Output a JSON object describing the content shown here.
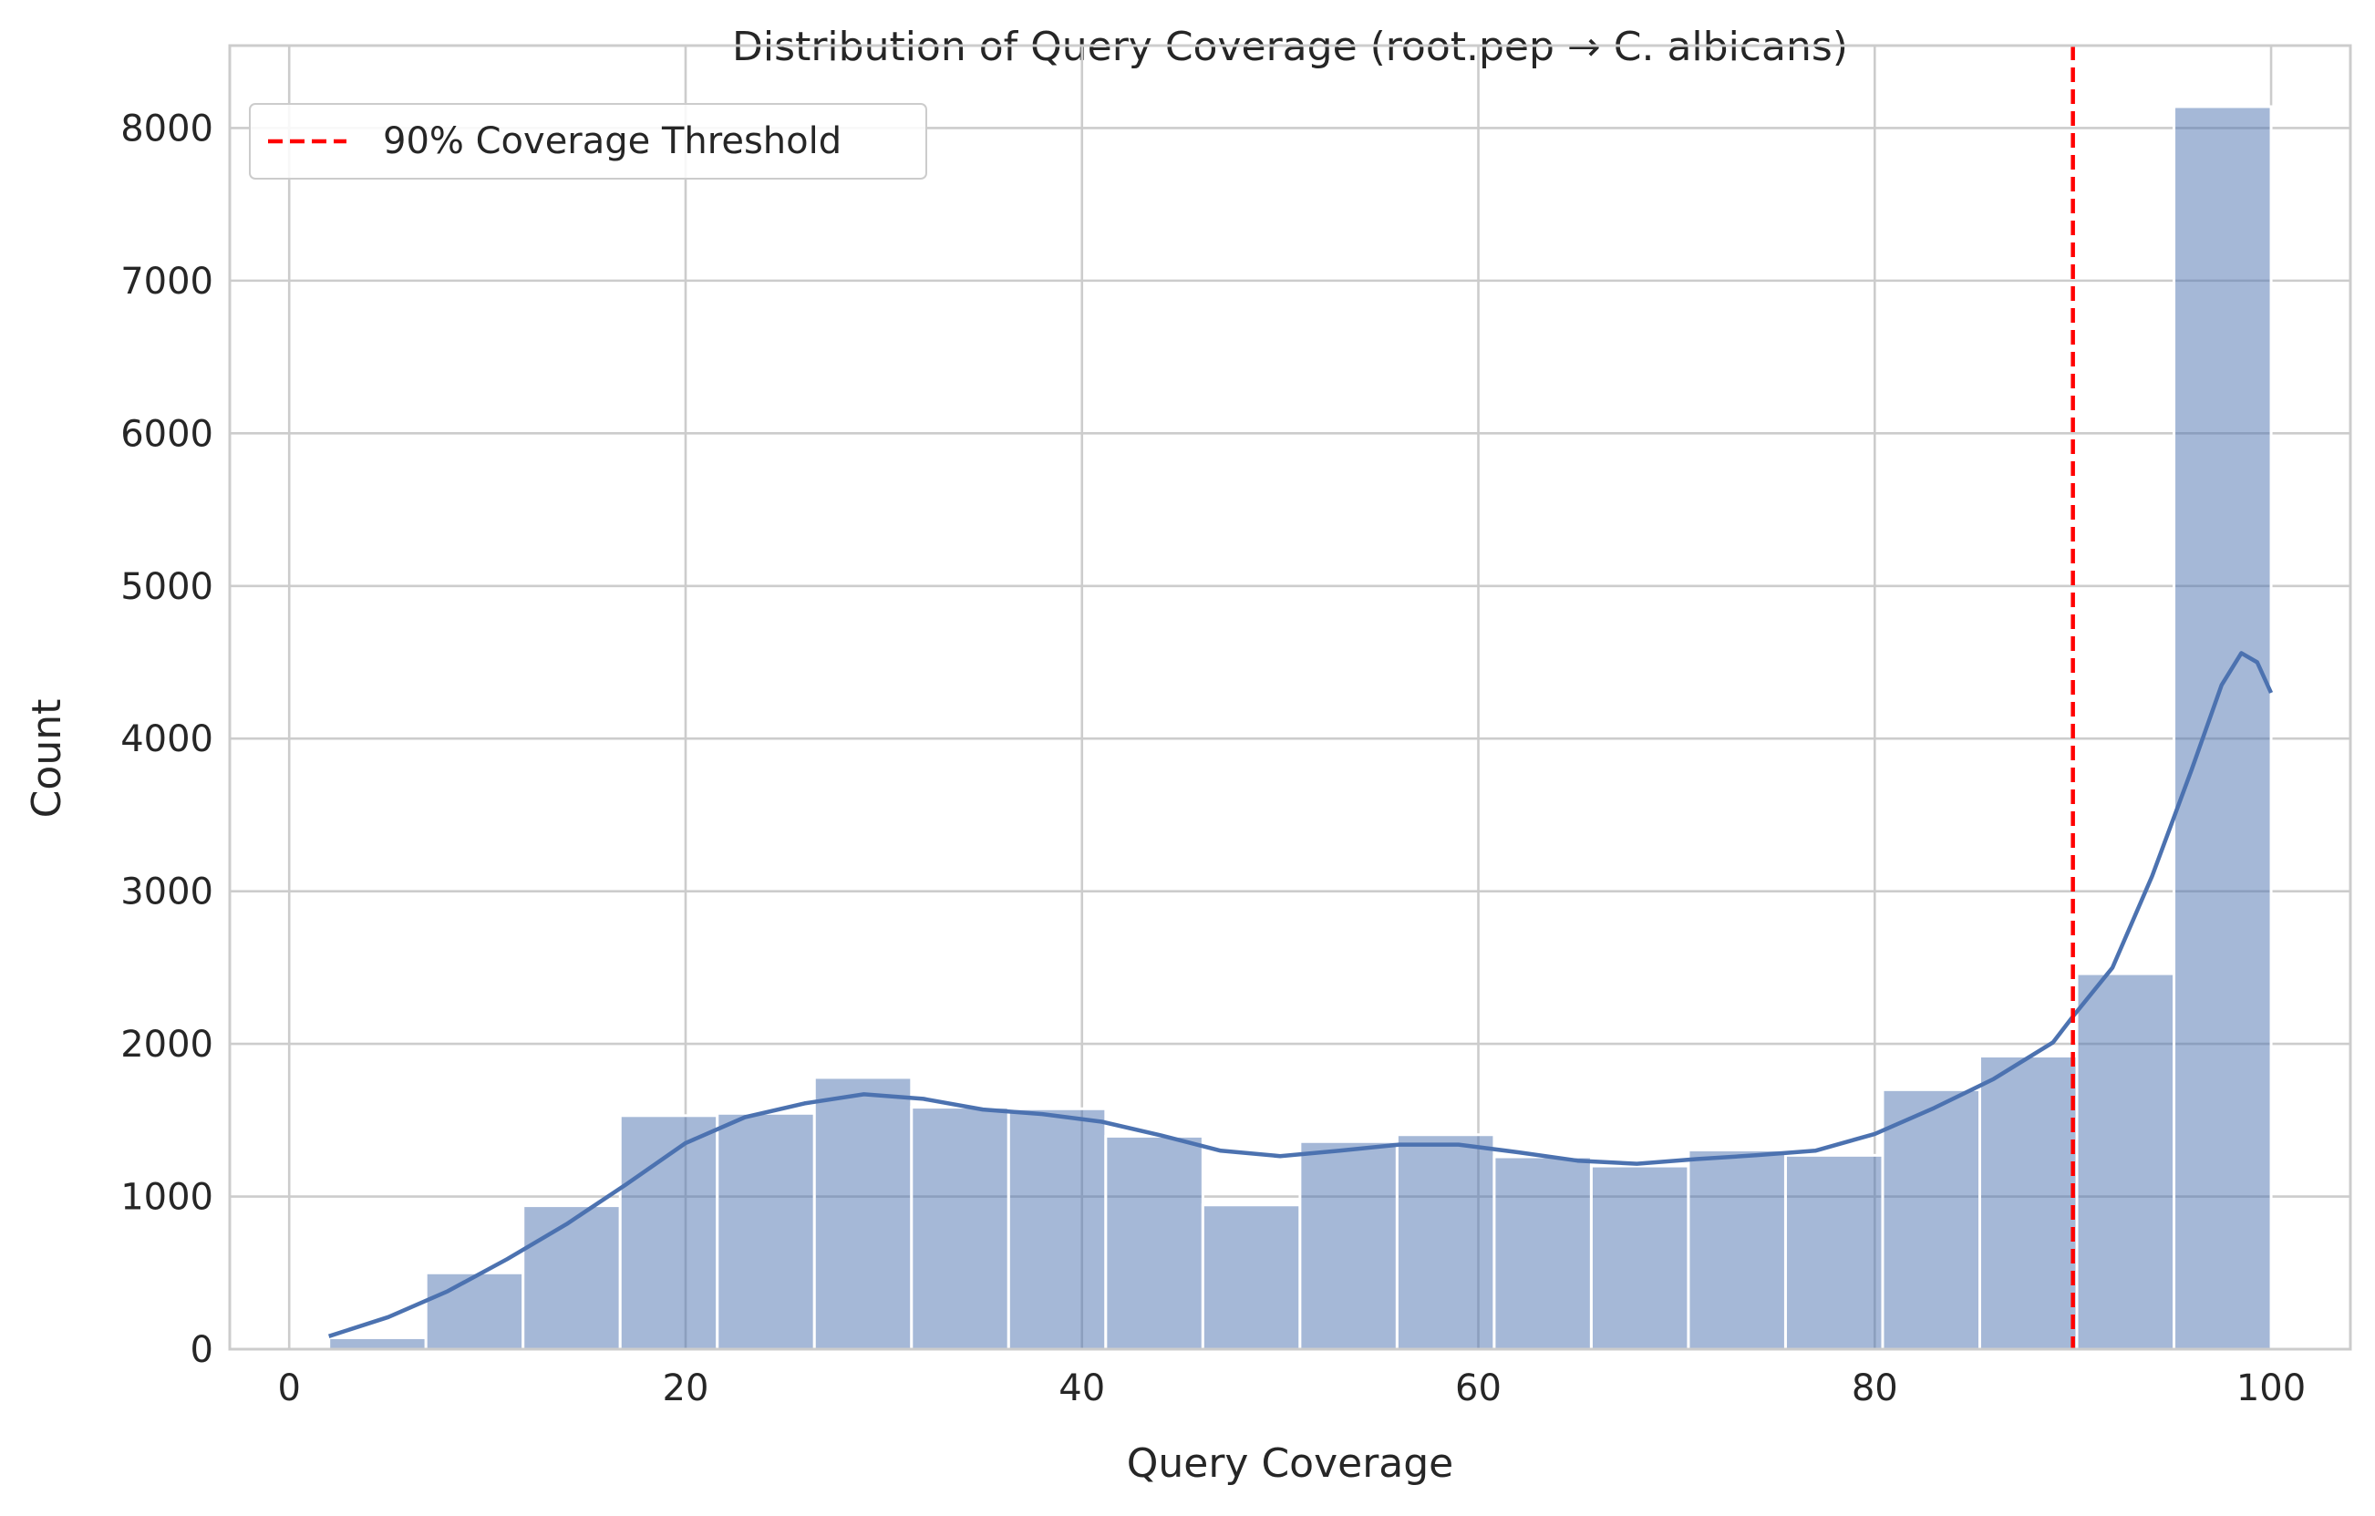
{
  "chart_data": {
    "type": "histogram",
    "title": "Distribution of Query Coverage (root.pep → C. albicans)",
    "xlabel": "Query Coverage",
    "ylabel": "Count",
    "xlim": [
      -3,
      104
    ],
    "ylim": [
      0,
      8540
    ],
    "xticks": [
      0,
      20,
      40,
      60,
      80,
      100
    ],
    "yticks": [
      0,
      1000,
      2000,
      3000,
      4000,
      5000,
      6000,
      7000,
      8000
    ],
    "grid": true,
    "legend": {
      "placement": "top-left",
      "entries": [
        {
          "label": "90% Coverage Threshold",
          "color": "#ff0000",
          "style": "dashed"
        }
      ]
    },
    "bar_color": "#4c72b0",
    "bar_opacity": 0.5,
    "bins": [
      {
        "x0": 2.0,
        "x1": 6.9,
        "count": 75
      },
      {
        "x0": 6.9,
        "x1": 11.8,
        "count": 500
      },
      {
        "x0": 11.8,
        "x1": 16.7,
        "count": 940
      },
      {
        "x0": 16.7,
        "x1": 21.6,
        "count": 1530
      },
      {
        "x0": 21.6,
        "x1": 26.5,
        "count": 1545
      },
      {
        "x0": 26.5,
        "x1": 31.4,
        "count": 1780
      },
      {
        "x0": 31.4,
        "x1": 36.3,
        "count": 1585
      },
      {
        "x0": 36.3,
        "x1": 41.2,
        "count": 1575
      },
      {
        "x0": 41.2,
        "x1": 46.1,
        "count": 1395
      },
      {
        "x0": 46.1,
        "x1": 51.0,
        "count": 945
      },
      {
        "x0": 51.0,
        "x1": 55.9,
        "count": 1360
      },
      {
        "x0": 55.9,
        "x1": 60.8,
        "count": 1405
      },
      {
        "x0": 60.8,
        "x1": 65.7,
        "count": 1260
      },
      {
        "x0": 65.7,
        "x1": 70.6,
        "count": 1200
      },
      {
        "x0": 70.6,
        "x1": 75.5,
        "count": 1305
      },
      {
        "x0": 75.5,
        "x1": 80.4,
        "count": 1270
      },
      {
        "x0": 80.4,
        "x1": 85.3,
        "count": 1700
      },
      {
        "x0": 85.3,
        "x1": 90.2,
        "count": 1920
      },
      {
        "x0": 90.2,
        "x1": 95.1,
        "count": 2460
      },
      {
        "x0": 95.1,
        "x1": 100.0,
        "count": 8140
      }
    ],
    "kde": {
      "color": "#4c72b0",
      "points": [
        [
          2,
          85
        ],
        [
          5,
          210
        ],
        [
          8,
          380
        ],
        [
          11,
          590
        ],
        [
          14,
          820
        ],
        [
          17,
          1080
        ],
        [
          20,
          1350
        ],
        [
          23,
          1520
        ],
        [
          26,
          1610
        ],
        [
          29,
          1670
        ],
        [
          32,
          1640
        ],
        [
          35,
          1570
        ],
        [
          38,
          1540
        ],
        [
          41,
          1490
        ],
        [
          44,
          1400
        ],
        [
          47,
          1300
        ],
        [
          50,
          1265
        ],
        [
          53,
          1300
        ],
        [
          56,
          1340
        ],
        [
          59,
          1340
        ],
        [
          62,
          1290
        ],
        [
          65,
          1235
        ],
        [
          68,
          1215
        ],
        [
          71,
          1245
        ],
        [
          74,
          1270
        ],
        [
          77,
          1300
        ],
        [
          80,
          1410
        ],
        [
          83,
          1580
        ],
        [
          86,
          1770
        ],
        [
          89,
          2010
        ],
        [
          90,
          2180
        ],
        [
          92,
          2500
        ],
        [
          94,
          3100
        ],
        [
          96,
          3800
        ],
        [
          97.5,
          4350
        ],
        [
          98.5,
          4560
        ],
        [
          99.3,
          4500
        ],
        [
          100,
          4300
        ]
      ]
    },
    "threshold_line": {
      "x": 90,
      "label": "90% Coverage Threshold",
      "color": "#ff0000"
    }
  }
}
